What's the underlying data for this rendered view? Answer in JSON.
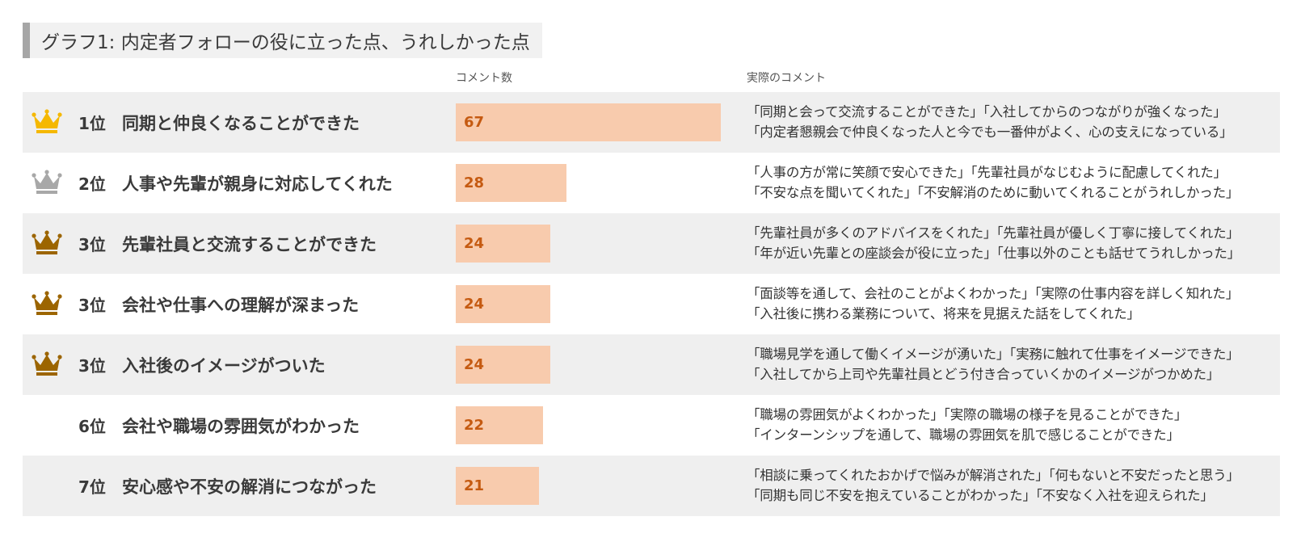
{
  "title": "グラフ1: 内定者フォローの役に立った点、うれしかった点",
  "headers": {
    "count": "コメント数",
    "comment": "実際のコメント"
  },
  "colors": {
    "bar": "#f8cbad",
    "value_text": "#c55a11",
    "gold": "#f5b800",
    "silver": "#a8a8a8",
    "bronze": "#9c6500",
    "row_shade": "#efefef"
  },
  "chart_data": {
    "type": "bar",
    "orientation": "horizontal",
    "xlim": [
      0,
      67
    ],
    "rows": [
      {
        "rank": "1位",
        "crown": "gold-crown-icon",
        "label": "同期と仲良くなることができた",
        "value": 67,
        "comments": [
          "「同期と会って交流することができた」「入社してからのつながりが強くなった」",
          "「内定者懇親会で仲良くなった人と今でも一番仲がよく、心の支えになっている」"
        ]
      },
      {
        "rank": "2位",
        "crown": "silver-crown-icon",
        "label": "人事や先輩が親身に対応してくれた",
        "value": 28,
        "comments": [
          "「人事の方が常に笑顔で安心できた」「先輩社員がなじむように配慮してくれた」",
          "「不安な点を聞いてくれた」「不安解消のために動いてくれることがうれしかった」"
        ]
      },
      {
        "rank": "3位",
        "crown": "bronze-crown-icon",
        "label": "先輩社員と交流することができた",
        "value": 24,
        "comments": [
          "「先輩社員が多くのアドバイスをくれた」「先輩社員が優しく丁寧に接してくれた」",
          "「年が近い先輩との座談会が役に立った」「仕事以外のことも話せてうれしかった」"
        ]
      },
      {
        "rank": "3位",
        "crown": "bronze-crown-icon",
        "label": "会社や仕事への理解が深まった",
        "value": 24,
        "comments": [
          "「面談等を通して、会社のことがよくわかった」「実際の仕事内容を詳しく知れた」",
          "「入社後に携わる業務について、将来を見据えた話をしてくれた」"
        ]
      },
      {
        "rank": "3位",
        "crown": "bronze-crown-icon",
        "label": "入社後のイメージがついた",
        "value": 24,
        "comments": [
          "「職場見学を通して働くイメージが湧いた」「実務に触れて仕事をイメージできた」",
          "「入社してから上司や先輩社員とどう付き合っていくかのイメージがつかめた」"
        ]
      },
      {
        "rank": "6位",
        "crown": "",
        "label": "会社や職場の雰囲気がわかった",
        "value": 22,
        "comments": [
          "「職場の雰囲気がよくわかった」「実際の職場の様子を見ることができた」",
          "「インターンシップを通して、職場の雰囲気を肌で感じることができた」"
        ]
      },
      {
        "rank": "7位",
        "crown": "",
        "label": "安心感や不安の解消につながった",
        "value": 21,
        "comments": [
          "「相談に乗ってくれたおかげで悩みが解消された」「何もないと不安だったと思う」",
          "「同期も同じ不安を抱えていることがわかった」「不安なく入社を迎えられた」"
        ]
      }
    ]
  }
}
